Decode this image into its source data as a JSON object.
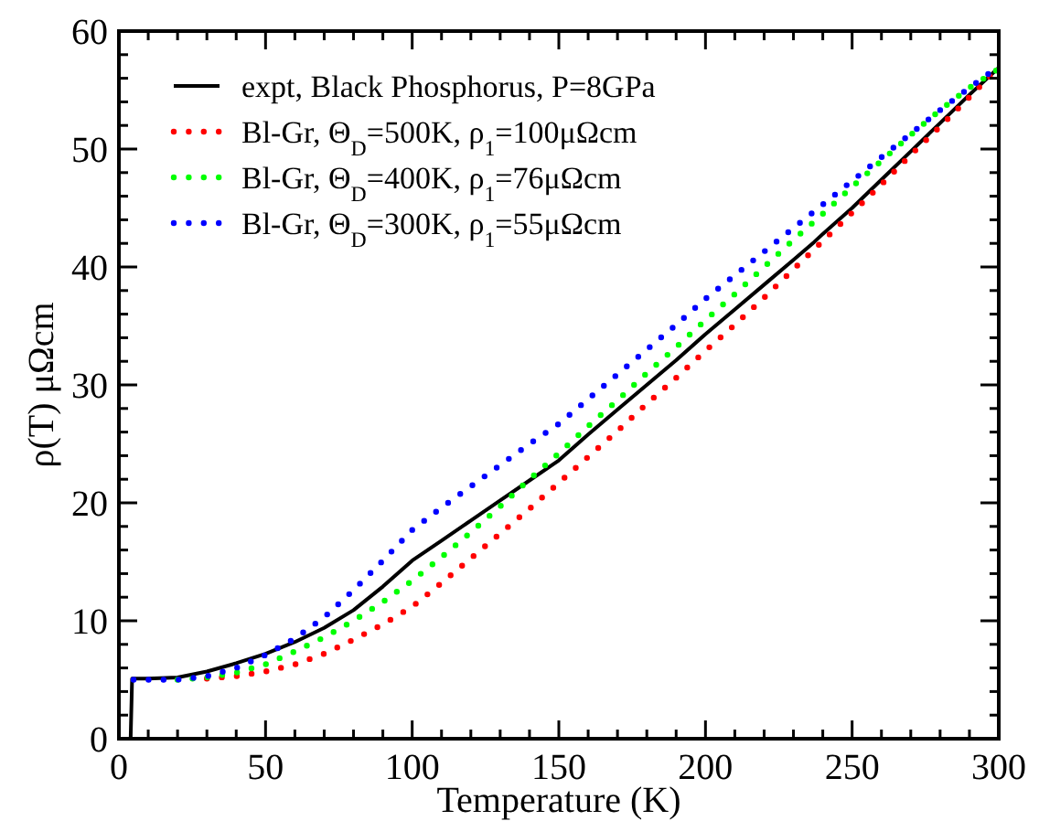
{
  "chart_data": {
    "type": "line",
    "xlabel": "Temperature (K)",
    "ylabel": "ρ(T) μΩcm",
    "xlim": [
      0,
      300
    ],
    "ylim": [
      0,
      60
    ],
    "xticks": [
      0,
      {
        "value": 10,
        "label": null
      },
      {
        "value": 20,
        "label": null
      },
      {
        "value": 30,
        "label": null
      },
      {
        "value": 40,
        "label": null
      },
      50,
      {
        "value": 60,
        "label": null
      },
      {
        "value": 70,
        "label": null
      },
      {
        "value": 80,
        "label": null
      },
      {
        "value": 90,
        "label": null
      },
      100,
      {
        "value": 110,
        "label": null
      },
      {
        "value": 120,
        "label": null
      },
      {
        "value": 130,
        "label": null
      },
      {
        "value": 140,
        "label": null
      },
      150,
      {
        "value": 160,
        "label": null
      },
      {
        "value": 170,
        "label": null
      },
      {
        "value": 180,
        "label": null
      },
      {
        "value": 190,
        "label": null
      },
      200,
      {
        "value": 210,
        "label": null
      },
      {
        "value": 220,
        "label": null
      },
      {
        "value": 230,
        "label": null
      },
      {
        "value": 240,
        "label": null
      },
      250,
      {
        "value": 260,
        "label": null
      },
      {
        "value": 270,
        "label": null
      },
      {
        "value": 280,
        "label": null
      },
      {
        "value": 290,
        "label": null
      },
      300
    ],
    "yticks": [
      0,
      {
        "value": 2,
        "label": null
      },
      {
        "value": 4,
        "label": null
      },
      {
        "value": 6,
        "label": null
      },
      {
        "value": 8,
        "label": null
      },
      10,
      {
        "value": 12,
        "label": null
      },
      {
        "value": 14,
        "label": null
      },
      {
        "value": 16,
        "label": null
      },
      {
        "value": 18,
        "label": null
      },
      20,
      {
        "value": 22,
        "label": null
      },
      {
        "value": 24,
        "label": null
      },
      {
        "value": 26,
        "label": null
      },
      {
        "value": 28,
        "label": null
      },
      30,
      {
        "value": 32,
        "label": null
      },
      {
        "value": 34,
        "label": null
      },
      {
        "value": 36,
        "label": null
      },
      {
        "value": 38,
        "label": null
      },
      40,
      {
        "value": 42,
        "label": null
      },
      {
        "value": 44,
        "label": null
      },
      {
        "value": 46,
        "label": null
      },
      {
        "value": 48,
        "label": null
      },
      50,
      {
        "value": 52,
        "label": null
      },
      {
        "value": 54,
        "label": null
      },
      {
        "value": 56,
        "label": null
      },
      {
        "value": 58,
        "label": null
      },
      60
    ],
    "grid": false,
    "legend": "top left",
    "series": [
      {
        "name": "expt, Black Phosphorus, P=8GPa",
        "color": "#000000",
        "line_style": "solid",
        "x": [
          4,
          4.5,
          10,
          20,
          30,
          40,
          50,
          60,
          70,
          80,
          90,
          100,
          110,
          120,
          130,
          140,
          150,
          160,
          170,
          180,
          190,
          200,
          210,
          220,
          230,
          237,
          240,
          250,
          260,
          270,
          280,
          290,
          300
        ],
        "values": [
          0,
          5.1,
          5.1,
          5.2,
          5.7,
          6.4,
          7.2,
          8.2,
          9.4,
          10.9,
          12.9,
          15.1,
          16.8,
          18.5,
          20.2,
          21.9,
          23.6,
          25.8,
          27.9,
          30.0,
          32.1,
          34.3,
          36.4,
          38.5,
          40.6,
          42.1,
          42.8,
          45.0,
          47.4,
          49.8,
          52.2,
          54.6,
          56.9
        ]
      },
      {
        "name": "Bl-Gr, Θ$_{D}$=500K, ρ$_{1}$=100μΩcm",
        "color": "#ff0000",
        "line_style": "dotted",
        "x": [
          30,
          40,
          50,
          60,
          70,
          80,
          90,
          100,
          110,
          120,
          130,
          140,
          150,
          160,
          170,
          180,
          190,
          200,
          210,
          220,
          230,
          240,
          250,
          260,
          270,
          280,
          290,
          300
        ],
        "values": [
          5.1,
          5.3,
          5.7,
          6.3,
          7.2,
          8.4,
          9.7,
          11.2,
          13.2,
          15.3,
          17.4,
          19.5,
          21.7,
          23.9,
          26.1,
          28.4,
          30.6,
          32.9,
          35.1,
          37.4,
          39.8,
          42.2,
          44.6,
          47.0,
          49.5,
          51.9,
          54.4,
          56.9
        ]
      },
      {
        "name": "Bl-Gr, Θ$_{D}$=400K, ρ$_{1}$=76μΩcm",
        "color": "#00ff00",
        "line_style": "dotted",
        "x": [
          20,
          30,
          40,
          50,
          60,
          70,
          80,
          90,
          100,
          110,
          120,
          130,
          140,
          150,
          160,
          170,
          180,
          190,
          200,
          210,
          220,
          230,
          240,
          250,
          260,
          270,
          280,
          290,
          300
        ],
        "values": [
          5.0,
          5.2,
          5.6,
          6.3,
          7.4,
          8.6,
          10.0,
          11.6,
          13.4,
          15.4,
          17.5,
          19.7,
          22.0,
          24.2,
          26.5,
          28.7,
          31.0,
          33.2,
          35.5,
          37.7,
          40.0,
          42.3,
          44.5,
          46.8,
          49.0,
          51.2,
          53.3,
          55.2,
          56.8
        ]
      },
      {
        "name": "Bl-Gr, Θ$_{D}$=300K, ρ$_{1}$=55μΩcm",
        "color": "#0000ff",
        "line_style": "dotted",
        "x": [
          5,
          10,
          20,
          30,
          40,
          50,
          60,
          70,
          80,
          90,
          100,
          110,
          120,
          130,
          140,
          150,
          160,
          170,
          180,
          190,
          200,
          210,
          220,
          230,
          240,
          250,
          260,
          270,
          280,
          290,
          300
        ],
        "values": [
          5.0,
          5.0,
          5.0,
          5.3,
          6.0,
          7.1,
          8.5,
          10.3,
          12.6,
          15.1,
          17.7,
          19.6,
          21.4,
          23.2,
          25.0,
          26.7,
          28.8,
          30.9,
          33.0,
          35.1,
          37.3,
          39.3,
          41.3,
          43.3,
          45.3,
          47.3,
          49.3,
          51.3,
          53.3,
          55.2,
          57.0
        ]
      }
    ]
  }
}
